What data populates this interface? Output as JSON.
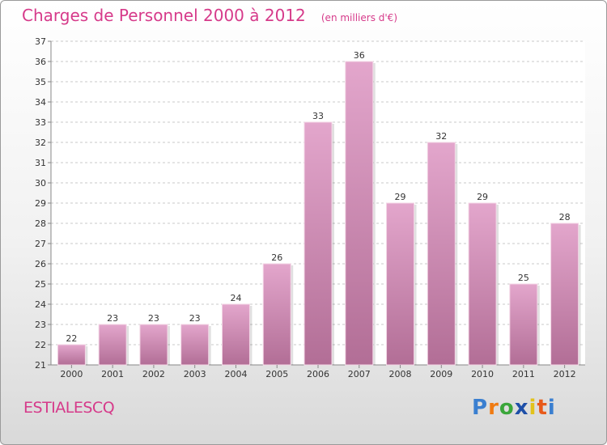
{
  "chart_data": {
    "type": "bar",
    "title": "Charges de Personnel 2000 à 2012",
    "subtitle": "(en milliers d'€)",
    "categories": [
      "2000",
      "2001",
      "2002",
      "2003",
      "2004",
      "2005",
      "2006",
      "2007",
      "2008",
      "2009",
      "2010",
      "2011",
      "2012"
    ],
    "values": [
      22,
      23,
      23,
      23,
      24,
      26,
      33,
      36,
      29,
      32,
      29,
      25,
      28
    ],
    "ylim": [
      21,
      37
    ],
    "yticks": [
      21,
      22,
      23,
      24,
      25,
      26,
      27,
      28,
      29,
      30,
      31,
      32,
      33,
      34,
      35,
      36,
      37
    ],
    "grid": true,
    "bar_color": "#d998bf"
  },
  "commune": "ESTIALESCQ",
  "logo": {
    "letters": [
      "P",
      "r",
      "o",
      "x",
      "i",
      "t",
      "i"
    ],
    "colors": [
      "#3a7fd0",
      "#f07b12",
      "#3aa63a",
      "#1e4fa8",
      "#e2c21b",
      "#e85a1a",
      "#3a7fd0"
    ]
  }
}
